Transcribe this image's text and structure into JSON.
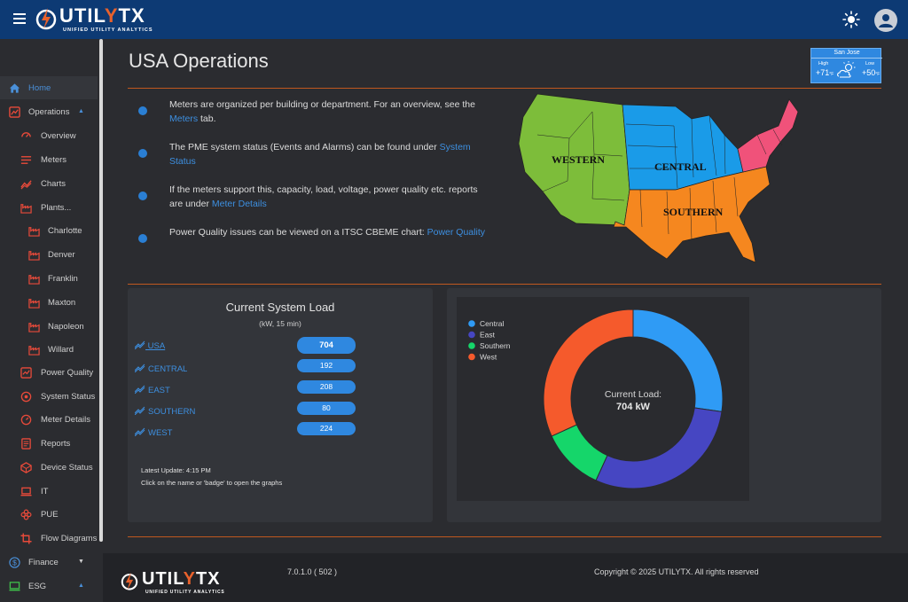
{
  "app": {
    "brand_left": "UTIL",
    "brand_accent": "Y",
    "brand_right": "TX",
    "tagline": "UNIFIED UTILITY ANALYTICS"
  },
  "sidebar": {
    "items": [
      {
        "label": "Home",
        "icon": "home-icon",
        "active": true
      },
      {
        "label": "Operations",
        "icon": "operations-icon",
        "expanded": true
      },
      {
        "label": "Overview",
        "icon": "overview-icon"
      },
      {
        "label": "Meters",
        "icon": "meters-list-icon"
      },
      {
        "label": "Charts",
        "icon": "chart-line-icon"
      },
      {
        "label": "Plants...",
        "icon": "factory-icon"
      },
      {
        "label": "Charlotte",
        "icon": "factory-icon"
      },
      {
        "label": "Denver",
        "icon": "factory-icon"
      },
      {
        "label": "Franklin",
        "icon": "factory-icon"
      },
      {
        "label": "Maxton",
        "icon": "factory-icon"
      },
      {
        "label": "Napoleon",
        "icon": "factory-icon"
      },
      {
        "label": "Willard",
        "icon": "factory-icon"
      },
      {
        "label": "Power Quality",
        "icon": "power-quality-icon"
      },
      {
        "label": "System Status",
        "icon": "system-status-icon"
      },
      {
        "label": "Meter Details",
        "icon": "meter-details-icon"
      },
      {
        "label": "Reports",
        "icon": "reports-icon"
      },
      {
        "label": "Device Status",
        "icon": "device-status-icon"
      },
      {
        "label": "IT",
        "icon": "laptop-icon"
      },
      {
        "label": "PUE",
        "icon": "pue-icon"
      },
      {
        "label": "Flow Diagrams",
        "icon": "crop-icon"
      },
      {
        "label": "Finance",
        "icon": "dollar-icon",
        "expanded": false
      },
      {
        "label": "ESG",
        "icon": "monitor-icon",
        "expanded": true
      }
    ]
  },
  "page": {
    "title": "USA Operations"
  },
  "weather": {
    "city": "San Jose",
    "high_label": "High",
    "high_temp": "+71",
    "low_label": "Low",
    "low_temp": "+50",
    "unit": "°F"
  },
  "info": [
    {
      "before": "Meters are organized per building or department. For an overview, see the ",
      "link": "Meters",
      "after": " tab."
    },
    {
      "before": "The PME system status (Events and Alarms) can be found under ",
      "link": "System Status",
      "after": ""
    },
    {
      "before": "If the meters support this, capacity, load, voltage, power quality etc. reports are under ",
      "link": "Meter Details",
      "after": ""
    },
    {
      "before": "Power Quality issues can be viewed on a ITSC CBEME chart: ",
      "link": "Power Quality",
      "after": ""
    }
  ],
  "map": {
    "regions": [
      {
        "label": "WESTERN",
        "color": "#7dbd3a"
      },
      {
        "label": "CENTRAL",
        "color": "#1a9be8"
      },
      {
        "label": "SOUTHERN",
        "color": "#f5871f"
      },
      {
        "label": "",
        "color": "#f0527a"
      }
    ]
  },
  "load": {
    "title": "Current System Load",
    "subtitle": "(kW, 15 min)",
    "rows": [
      {
        "name": " USA",
        "value": "704"
      },
      {
        "name": "CENTRAL",
        "value": "192"
      },
      {
        "name": "EAST",
        "value": "208"
      },
      {
        "name": "SOUTHERN",
        "value": "80"
      },
      {
        "name": "WEST",
        "value": "224"
      }
    ],
    "updated": "Latest Update: 4:15 PM",
    "hint": "Click on the name or 'badge' to open the graphs"
  },
  "chart_data": {
    "type": "pie",
    "categories": [
      "Central",
      "East",
      "Southern",
      "West"
    ],
    "values": [
      192,
      208,
      80,
      224
    ],
    "colors": [
      "#2f9bf5",
      "#4646c2",
      "#15d66a",
      "#f55a2c"
    ],
    "legend_position": "top-left",
    "center_label": "Current Load:",
    "center_value": "704 kW"
  },
  "footer": {
    "version": "7.0.1.0 ( 502 )",
    "copyright": "Copyright © 2025 UTILYTX. All rights reserved"
  }
}
